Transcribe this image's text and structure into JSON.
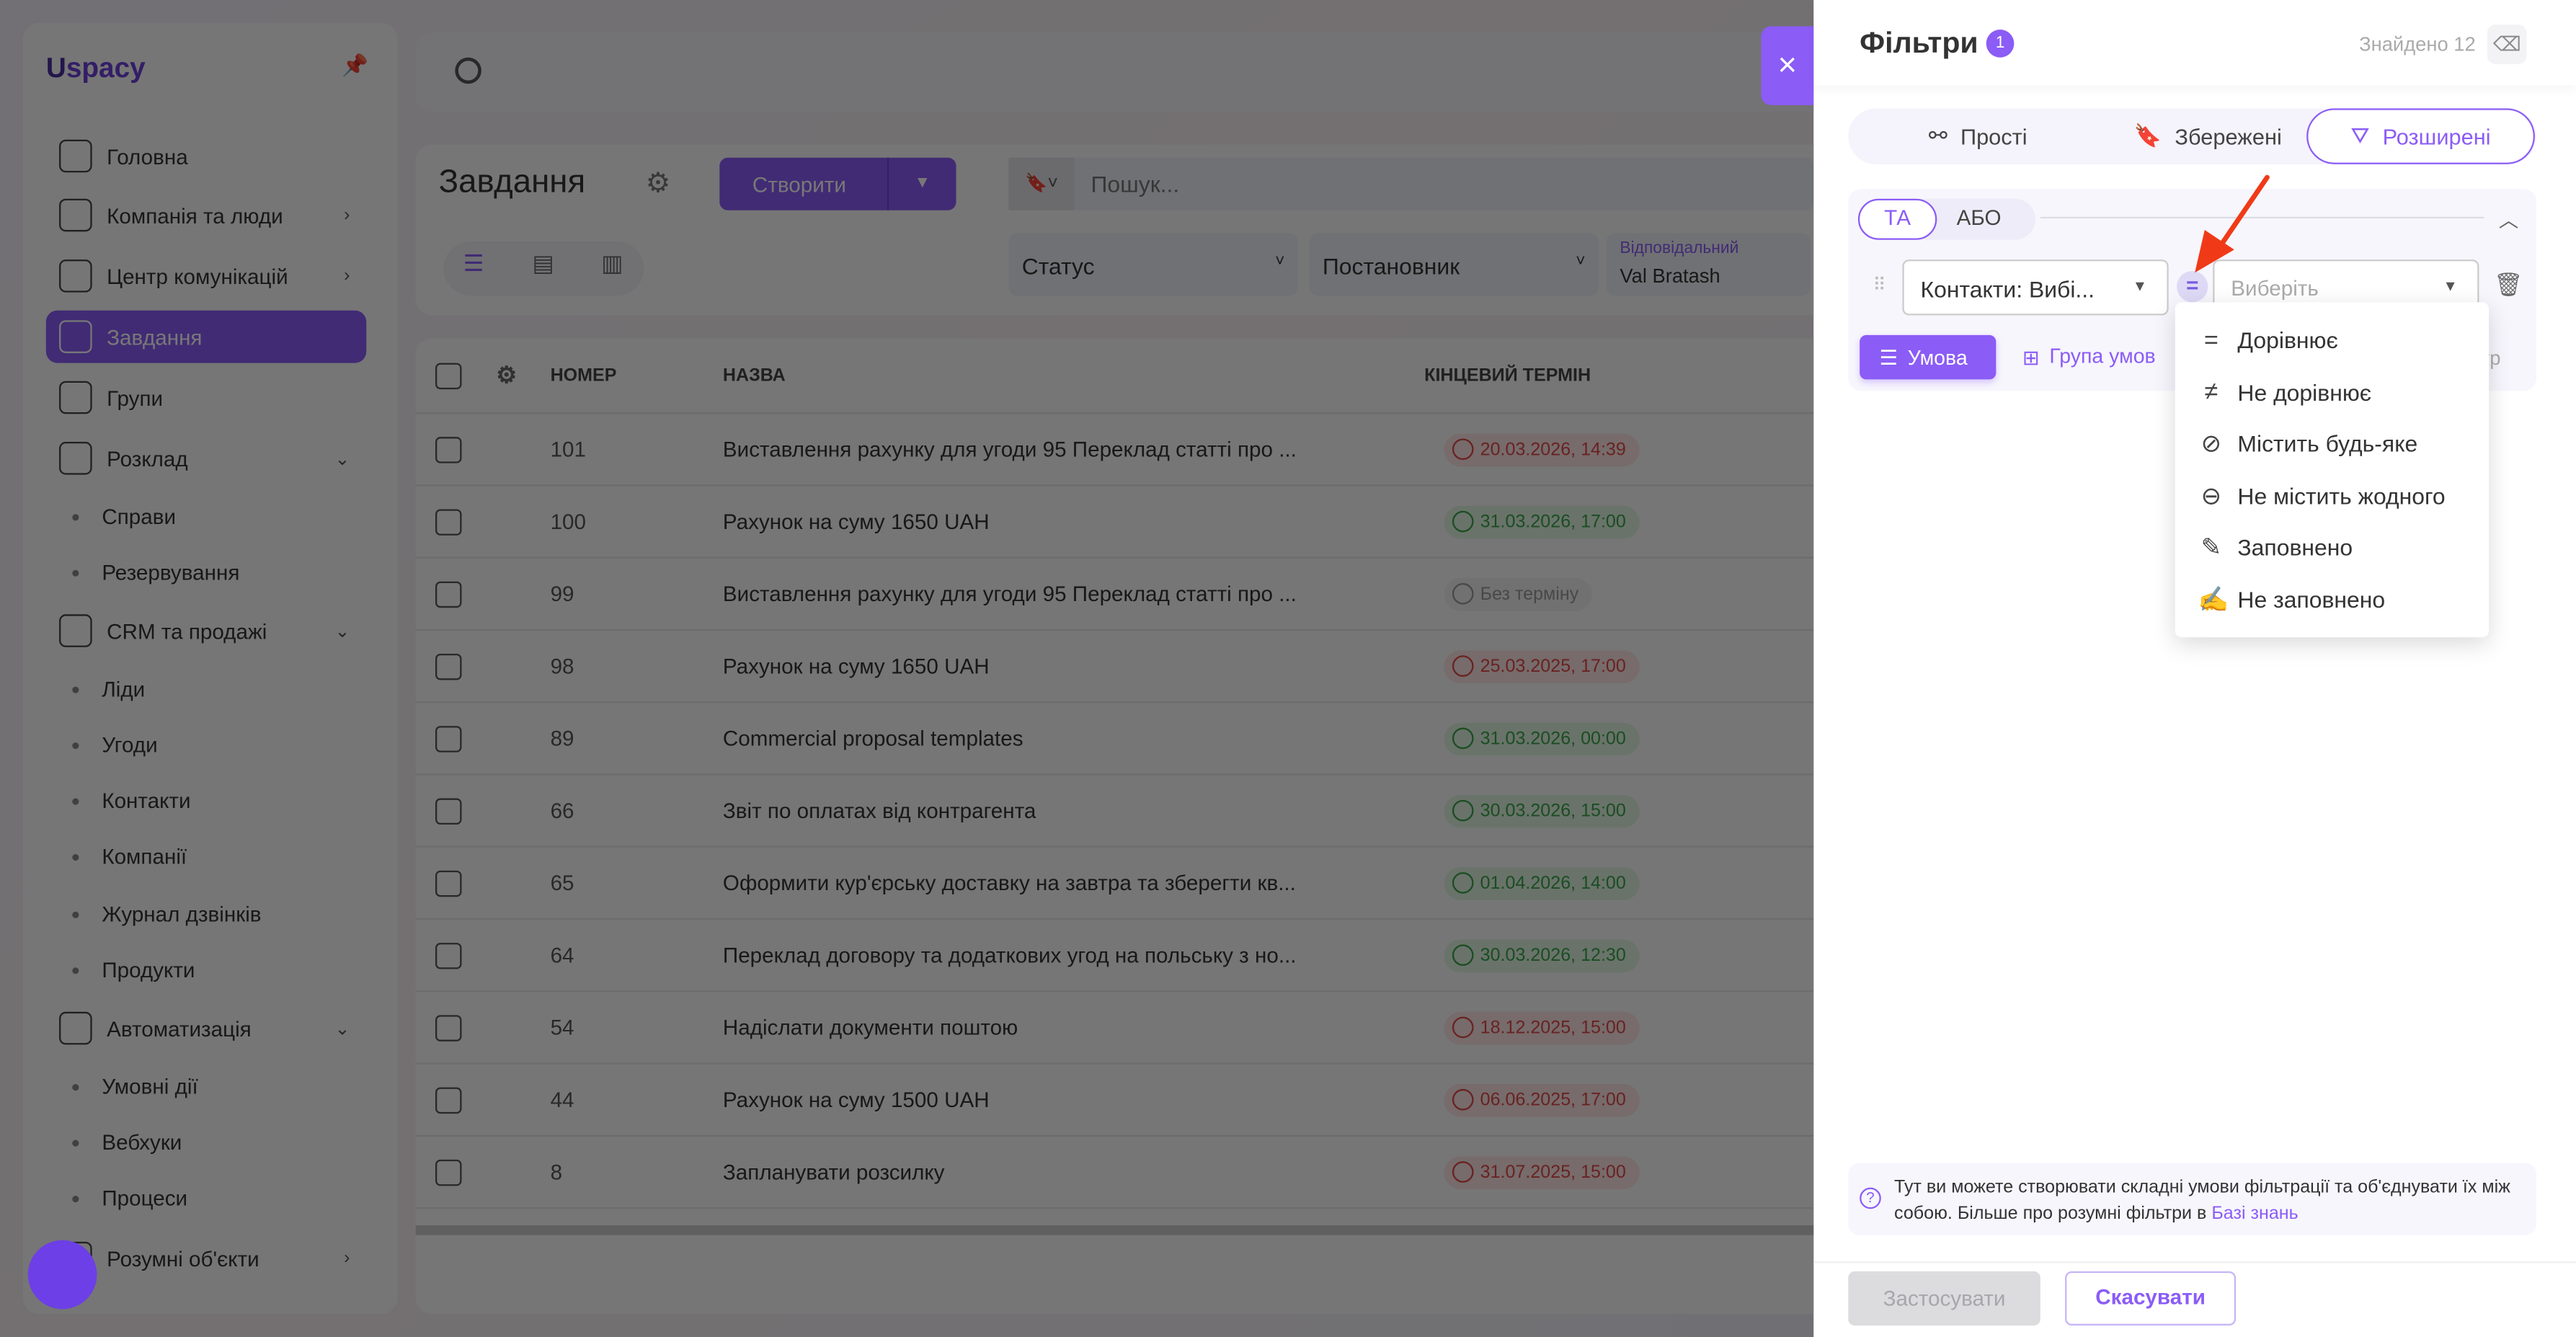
{
  "sidebar": {
    "logo": "spacy",
    "items": [
      {
        "label": "Головна",
        "type": "item"
      },
      {
        "label": "Компанія та люди",
        "type": "item",
        "chev": ">"
      },
      {
        "label": "Центр комунікацій",
        "type": "item",
        "chev": ">"
      },
      {
        "label": "Завдання",
        "type": "item",
        "active": true
      },
      {
        "label": "Групи",
        "type": "item"
      },
      {
        "label": "Розклад",
        "type": "item",
        "chev": "v"
      },
      {
        "label": "Справи",
        "type": "sub"
      },
      {
        "label": "Резервування",
        "type": "sub"
      },
      {
        "label": "CRM та продажі",
        "type": "item",
        "chev": "v"
      },
      {
        "label": "Ліди",
        "type": "sub"
      },
      {
        "label": "Угоди",
        "type": "sub"
      },
      {
        "label": "Контакти",
        "type": "sub"
      },
      {
        "label": "Компанії",
        "type": "sub"
      },
      {
        "label": "Журнал дзвінків",
        "type": "sub"
      },
      {
        "label": "Продукти",
        "type": "sub"
      },
      {
        "label": "Автоматизація",
        "type": "item",
        "chev": "v"
      },
      {
        "label": "Умовні дії",
        "type": "sub"
      },
      {
        "label": "Вебхуки",
        "type": "sub"
      },
      {
        "label": "Процеси",
        "type": "sub"
      },
      {
        "label": "Розумні об'єкти",
        "type": "item",
        "chev": ">"
      }
    ]
  },
  "header": {
    "title": "Завдання",
    "create_label": "Створити",
    "search_placeholder": "Пошук...",
    "filters": {
      "status": "Статус",
      "author": "Постановник",
      "responsible_label": "Відповідальний",
      "responsible_value": "Val Bratash"
    }
  },
  "table": {
    "columns": [
      "НОМЕР",
      "НАЗВА",
      "КІНЦЕВИЙ ТЕРМІН"
    ],
    "rows": [
      {
        "num": "101",
        "name": "Виставлення рахунку для угоди 95 Переклад статті про ...",
        "due": "20.03.2026, 14:39",
        "state": "red"
      },
      {
        "num": "100",
        "name": "Рахунок на суму 1650 UAH",
        "due": "31.03.2026, 17:00",
        "state": "green"
      },
      {
        "num": "99",
        "name": "Виставлення рахунку для угоди 95 Переклад статті про ...",
        "due": "Без терміну",
        "state": "none"
      },
      {
        "num": "98",
        "name": "Рахунок на суму 1650 UAH",
        "due": "25.03.2025, 17:00",
        "state": "red"
      },
      {
        "num": "89",
        "name": "Commercial proposal templates",
        "due": "31.03.2026, 00:00",
        "state": "green"
      },
      {
        "num": "66",
        "name": "Звіт по оплатах від контрагента",
        "due": "30.03.2026, 15:00",
        "state": "green"
      },
      {
        "num": "65",
        "name": "Оформити кур'єрську доставку на завтра та зберегти кв...",
        "due": "01.04.2026, 14:00",
        "state": "green"
      },
      {
        "num": "64",
        "name": "Переклад договору та додаткових угод на польську з но...",
        "due": "30.03.2026, 12:30",
        "state": "green"
      },
      {
        "num": "54",
        "name": "Надіслати документи поштою",
        "due": "18.12.2025, 15:00",
        "state": "red"
      },
      {
        "num": "44",
        "name": "Рахунок на суму 1500 UAH",
        "due": "06.06.2025, 17:00",
        "state": "red"
      },
      {
        "num": "8",
        "name": "Запланувати розсилку",
        "due": "31.07.2025, 15:00",
        "state": "red"
      }
    ]
  },
  "panel": {
    "title": "Фільтри",
    "badge": "1",
    "found": "Знайдено 12",
    "close_icon": "×",
    "tabs": [
      "Прості",
      "Збережені",
      "Розширені"
    ],
    "active_tab": "Розширені",
    "logic": [
      "ТА",
      "АБО"
    ],
    "field_value": "Контакти: Вибі...",
    "operator_symbol": "=",
    "value_placeholder": "Виберіть",
    "add_condition": "Умова",
    "add_group": "Група умов",
    "hidden_text": "тр",
    "operators": [
      {
        "label": "Дорівнює",
        "icon": "="
      },
      {
        "label": "Не дорівнює",
        "icon": "≠"
      },
      {
        "label": "Містить будь-яке",
        "icon": "⊘"
      },
      {
        "label": "Не містить жодного",
        "icon": "⊖"
      },
      {
        "label": "Заповнено",
        "icon": "✎"
      },
      {
        "label": "Не заповнено",
        "icon": "✍"
      }
    ],
    "info_text": "Тут ви можете створювати складні умови фільтрації та об'єднувати їх між собою. Більше про розумні фільтри в ",
    "info_link": "Базі знань",
    "apply": "Застосувати",
    "cancel": "Скасувати"
  },
  "colors": {
    "accent": "#8b5cf6",
    "annotation_arrow": "#f03a17"
  }
}
